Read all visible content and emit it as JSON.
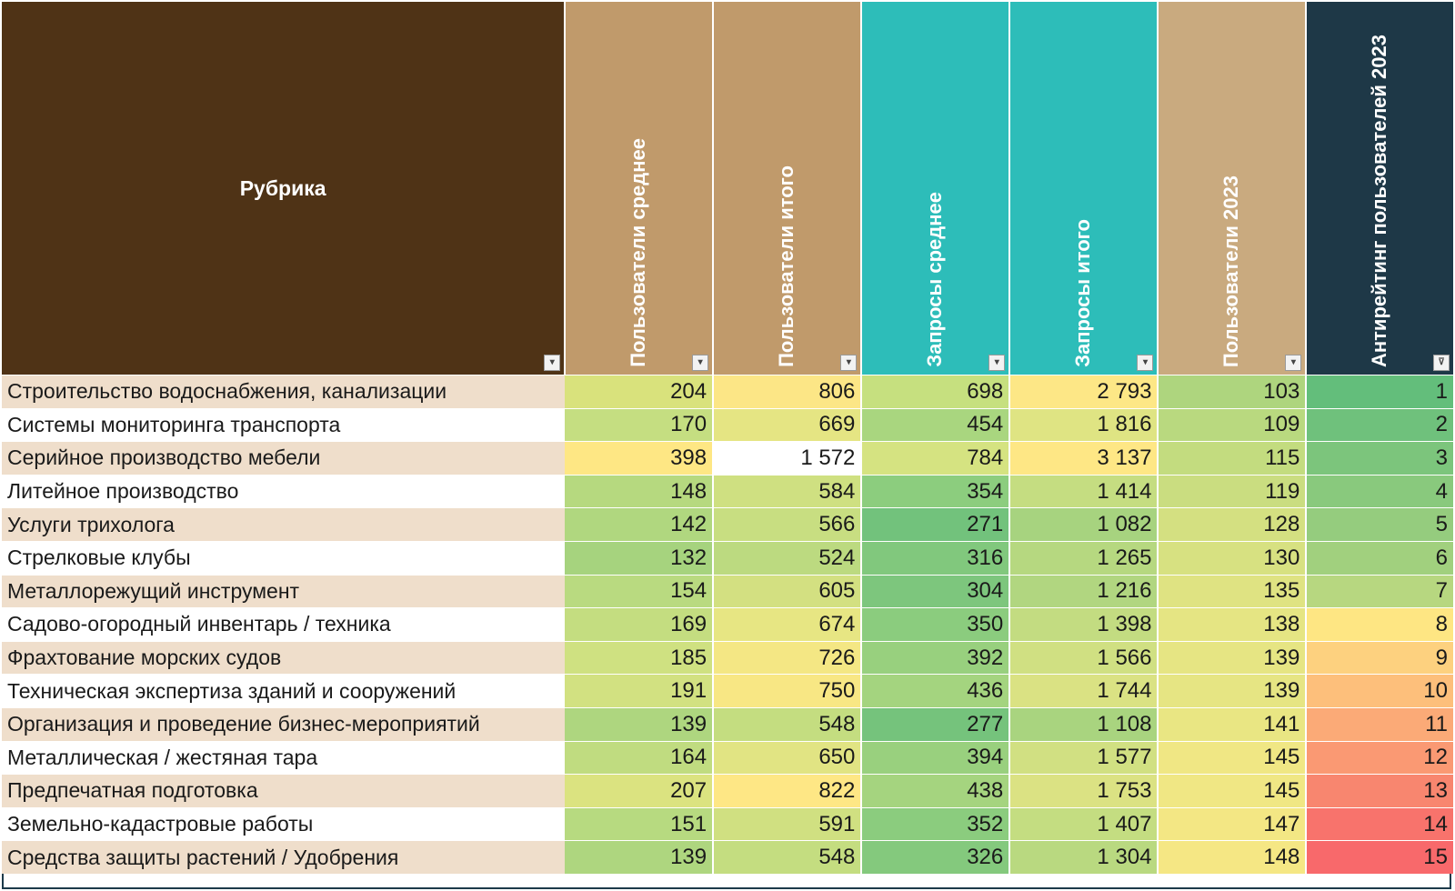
{
  "table": {
    "header_colors": [
      "#4f3316",
      "#c09a6b",
      "#c09a6b",
      "#2dbdb9",
      "#2dbdb9",
      "#c9aa7f",
      "#1e3847"
    ],
    "columns": [
      {
        "label": "Рубрика"
      },
      {
        "label": "Пользователи среднее"
      },
      {
        "label": "Пользователи итого"
      },
      {
        "label": "Запросы среднее"
      },
      {
        "label": "Запросы итого"
      },
      {
        "label": "Пользователи 2023"
      },
      {
        "label": "Антирейтинг пользователей 2023"
      }
    ],
    "rows": [
      {
        "name": "Строительство водоснабжения, канализации",
        "cells": [
          {
            "v": "204",
            "c": "#d9e27c"
          },
          {
            "v": "806",
            "c": "#fce686"
          },
          {
            "v": "698",
            "c": "#c6e07f"
          },
          {
            "v": "2 793",
            "c": "#fde786"
          },
          {
            "v": "103",
            "c": "#aed57e"
          },
          {
            "v": "1",
            "c": "#63be7b"
          }
        ]
      },
      {
        "name": "Системы мониторинга транспорта",
        "cells": [
          {
            "v": "170",
            "c": "#c5de81"
          },
          {
            "v": "669",
            "c": "#e5e583"
          },
          {
            "v": "454",
            "c": "#a9d67f"
          },
          {
            "v": "1 816",
            "c": "#dfe483"
          },
          {
            "v": "109",
            "c": "#b9d97f"
          },
          {
            "v": "2",
            "c": "#6fc17c"
          }
        ]
      },
      {
        "name": "Серийное производство мебели",
        "cells": [
          {
            "v": "398",
            "c": "#fee784"
          },
          {
            "v": "1 572",
            "c": "#ffffff"
          },
          {
            "v": "784",
            "c": "#d5e381"
          },
          {
            "v": "3 137",
            "c": "#fee785"
          },
          {
            "v": "115",
            "c": "#c3dc7f"
          },
          {
            "v": "3",
            "c": "#7cc57c"
          }
        ]
      },
      {
        "name": "Литейное производство",
        "cells": [
          {
            "v": "148",
            "c": "#b6d97f"
          },
          {
            "v": "584",
            "c": "#cfe081"
          },
          {
            "v": "354",
            "c": "#8ccd7e"
          },
          {
            "v": "1 414",
            "c": "#c5dd81"
          },
          {
            "v": "119",
            "c": "#cadd80"
          },
          {
            "v": "4",
            "c": "#89c97d"
          }
        ]
      },
      {
        "name": "Услуги трихолога",
        "cells": [
          {
            "v": "142",
            "c": "#b0d77f"
          },
          {
            "v": "566",
            "c": "#c8de81"
          },
          {
            "v": "271",
            "c": "#72c27c"
          },
          {
            "v": "1 082",
            "c": "#a7d37f"
          },
          {
            "v": "128",
            "c": "#d4e081"
          },
          {
            "v": "5",
            "c": "#95cc7e"
          }
        ]
      },
      {
        "name": "Стрелковые клубы",
        "cells": [
          {
            "v": "132",
            "c": "#a6d37e"
          },
          {
            "v": "524",
            "c": "#bcda80"
          },
          {
            "v": "316",
            "c": "#81c87d"
          },
          {
            "v": "1 265",
            "c": "#b6d880"
          },
          {
            "v": "130",
            "c": "#d7e181"
          },
          {
            "v": "6",
            "c": "#a1d07e"
          }
        ]
      },
      {
        "name": "Металлорежущий инструмент",
        "cells": [
          {
            "v": "154",
            "c": "#b9da80"
          },
          {
            "v": "605",
            "c": "#d3e081"
          },
          {
            "v": "304",
            "c": "#7dc67d"
          },
          {
            "v": "1 216",
            "c": "#b1d680"
          },
          {
            "v": "135",
            "c": "#dfe382"
          },
          {
            "v": "7",
            "c": "#b7d780"
          }
        ]
      },
      {
        "name": "Садово-огородный инвентарь / техника",
        "cells": [
          {
            "v": "169",
            "c": "#c4dd80"
          },
          {
            "v": "674",
            "c": "#e7e683"
          },
          {
            "v": "350",
            "c": "#8bcc7e"
          },
          {
            "v": "1 398",
            "c": "#c3dc81"
          },
          {
            "v": "138",
            "c": "#e5e583"
          },
          {
            "v": "8",
            "c": "#fee683"
          }
        ]
      },
      {
        "name": "Фрахтование морских судов",
        "cells": [
          {
            "v": "185",
            "c": "#cfe181"
          },
          {
            "v": "726",
            "c": "#f4e784"
          },
          {
            "v": "392",
            "c": "#98d07e"
          },
          {
            "v": "1 566",
            "c": "#d0e082"
          },
          {
            "v": "139",
            "c": "#e6e583"
          },
          {
            "v": "9",
            "c": "#fdd17f"
          }
        ]
      },
      {
        "name": "Техническая экспертиза зданий и сооружений",
        "cells": [
          {
            "v": "191",
            "c": "#d2e181"
          },
          {
            "v": "750",
            "c": "#f8e784"
          },
          {
            "v": "436",
            "c": "#a4d47f"
          },
          {
            "v": "1 744",
            "c": "#dae283"
          },
          {
            "v": "139",
            "c": "#e6e583"
          },
          {
            "v": "10",
            "c": "#fdbf7b"
          }
        ]
      },
      {
        "name": "Организация и проведение бизнес-мероприятий",
        "cells": [
          {
            "v": "139",
            "c": "#aed67f"
          },
          {
            "v": "548",
            "c": "#c4dd80"
          },
          {
            "v": "277",
            "c": "#75c37c"
          },
          {
            "v": "1 108",
            "c": "#a9d47f"
          },
          {
            "v": "141",
            "c": "#e9e683"
          },
          {
            "v": "11",
            "c": "#fbaa77"
          }
        ]
      },
      {
        "name": "Металлическая / жестяная тара",
        "cells": [
          {
            "v": "164",
            "c": "#c0dc80"
          },
          {
            "v": "650",
            "c": "#e1e483"
          },
          {
            "v": "394",
            "c": "#99d07e"
          },
          {
            "v": "1 577",
            "c": "#d1e082"
          },
          {
            "v": "145",
            "c": "#f0e784"
          },
          {
            "v": "12",
            "c": "#fa9973"
          }
        ]
      },
      {
        "name": "Предпечатная подготовка",
        "cells": [
          {
            "v": "207",
            "c": "#dbe380"
          },
          {
            "v": "822",
            "c": "#fee785"
          },
          {
            "v": "438",
            "c": "#a5d47f"
          },
          {
            "v": "1 753",
            "c": "#dbe283"
          },
          {
            "v": "145",
            "c": "#f0e784"
          },
          {
            "v": "13",
            "c": "#f8866f"
          }
        ]
      },
      {
        "name": "Земельно-кадастровые работы",
        "cells": [
          {
            "v": "151",
            "c": "#b7da80"
          },
          {
            "v": "591",
            "c": "#d0e081"
          },
          {
            "v": "352",
            "c": "#8bcc7e"
          },
          {
            "v": "1 407",
            "c": "#c4dd81"
          },
          {
            "v": "147",
            "c": "#f3e784"
          },
          {
            "v": "14",
            "c": "#f8736c"
          }
        ]
      },
      {
        "name": "Средства защиты растений / Удобрения",
        "cells": [
          {
            "v": "139",
            "c": "#aed67f"
          },
          {
            "v": "548",
            "c": "#c4dd80"
          },
          {
            "v": "326",
            "c": "#84c97d"
          },
          {
            "v": "1 304",
            "c": "#b9d980"
          },
          {
            "v": "148",
            "c": "#f5e784"
          },
          {
            "v": "15",
            "c": "#f8696b"
          }
        ]
      }
    ]
  }
}
